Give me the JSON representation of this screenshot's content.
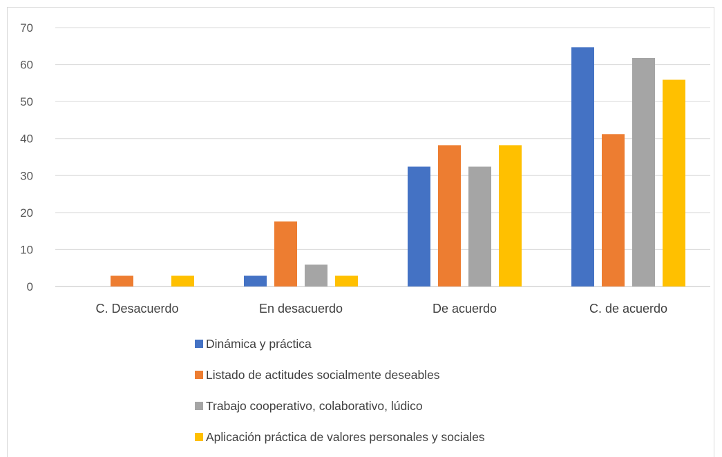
{
  "chart_data": {
    "type": "bar",
    "categories": [
      "C. Desacuerdo",
      "En desacuerdo",
      "De acuerdo",
      "C. de acuerdo"
    ],
    "series": [
      {
        "name": "Dinámica y práctica",
        "color": "#4472c4",
        "values": [
          0,
          2.9,
          32.4,
          64.7
        ]
      },
      {
        "name": "Listado de actitudes socialmente deseables",
        "color": "#ed7d31",
        "values": [
          2.9,
          17.6,
          38.2,
          41.2
        ]
      },
      {
        "name": "Trabajo cooperativo, colaborativo, lúdico",
        "color": "#a5a5a5",
        "values": [
          0,
          5.9,
          32.4,
          61.8
        ]
      },
      {
        "name": "Aplicación práctica de valores personales y sociales",
        "color": "#ffc000",
        "values": [
          2.9,
          2.9,
          38.2,
          55.9
        ]
      }
    ],
    "yticks": [
      "0",
      "10",
      "20",
      "30",
      "40",
      "50",
      "60",
      "70"
    ],
    "ylim": [
      0,
      70
    ],
    "grid": true,
    "legend": "bottom"
  }
}
